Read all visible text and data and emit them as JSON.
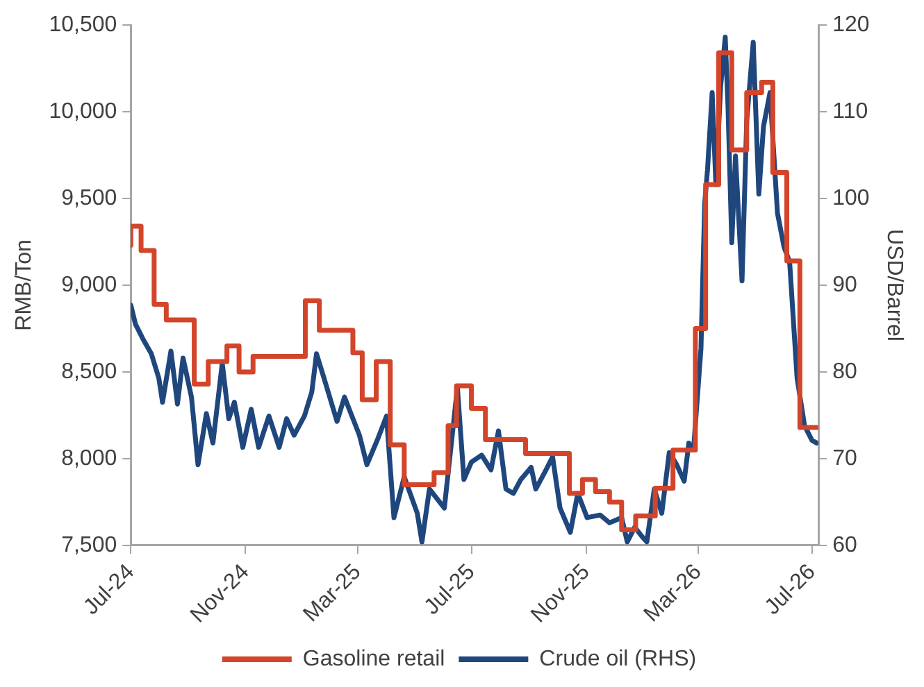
{
  "chart_data": {
    "type": "line",
    "ylabel": "RMB/Ton",
    "y2label": "USD/Barrel",
    "xlim": [
      "2024-07-01",
      "2026-07-08"
    ],
    "xticks": [
      {
        "value": "2024-07-01",
        "label": "Jul-24"
      },
      {
        "value": "2024-11-01",
        "label": "Nov-24"
      },
      {
        "value": "2025-03-01",
        "label": "Mar-25"
      },
      {
        "value": "2025-07-01",
        "label": "Jul-25"
      },
      {
        "value": "2025-11-01",
        "label": "Nov-25"
      },
      {
        "value": "2026-03-01",
        "label": "Mar-26"
      },
      {
        "value": "2026-07-01",
        "label": "Jul-26"
      }
    ],
    "ylim": [
      7500,
      10500
    ],
    "yticks": [
      {
        "value": 7500,
        "label": "7,500"
      },
      {
        "value": 8000,
        "label": "8,000"
      },
      {
        "value": 8500,
        "label": "8,500"
      },
      {
        "value": 9000,
        "label": "9,000"
      },
      {
        "value": 9500,
        "label": "9,500"
      },
      {
        "value": 10000,
        "label": "10,000"
      },
      {
        "value": 10500,
        "label": "10,500"
      }
    ],
    "y2lim": [
      60,
      120
    ],
    "y2ticks": [
      60,
      70,
      80,
      90,
      100,
      110,
      120
    ],
    "grid": false,
    "legend": "bottom",
    "marker": "none",
    "line_style": "solid",
    "series": [
      {
        "name": "Gasoline retail",
        "type": "step",
        "color": "#d2452b",
        "x": [
          "2024-07-01",
          "2024-07-12",
          "2024-07-26",
          "2024-08-08",
          "2024-09-07",
          "2024-09-22",
          "2024-10-12",
          "2024-10-25",
          "2024-11-09",
          "2025-01-04",
          "2025-01-19",
          "2025-02-24",
          "2025-03-06",
          "2025-03-21",
          "2025-04-05",
          "2025-04-20",
          "2025-05-22",
          "2025-06-06",
          "2025-06-15",
          "2025-07-01",
          "2025-07-16",
          "2025-08-28",
          "2025-10-14",
          "2025-10-28",
          "2025-11-11",
          "2025-11-26",
          "2025-12-09",
          "2025-12-24",
          "2026-01-14",
          "2026-02-02",
          "2026-02-26",
          "2026-03-09",
          "2026-03-23",
          "2026-04-06",
          "2026-04-22",
          "2026-05-08",
          "2026-05-20",
          "2026-06-04",
          "2026-06-18",
          "2026-07-04",
          "2026-07-06"
        ],
        "values": [
          9230,
          9340,
          9200,
          8890,
          8800,
          8430,
          8560,
          8650,
          8500,
          8590,
          8910,
          8740,
          8610,
          8340,
          8560,
          8080,
          7850,
          7920,
          8190,
          8420,
          8290,
          8110,
          8030,
          7800,
          7880,
          7810,
          7750,
          7590,
          7670,
          7830,
          8050,
          8750,
          9580,
          10340,
          9780,
          10110,
          10170,
          9650,
          9140,
          8180,
          8180
        ]
      },
      {
        "name": "Crude oil (RHS)",
        "type": "line",
        "axis": "y2",
        "color": "#1f477d",
        "x": [
          "2024-07-01",
          "2024-07-06",
          "2024-07-14",
          "2024-07-23",
          "2024-07-31",
          "2024-08-04",
          "2024-08-13",
          "2024-08-20",
          "2024-08-26",
          "2024-09-04",
          "2024-09-11",
          "2024-09-20",
          "2024-09-27",
          "2024-10-07",
          "2024-10-14",
          "2024-10-20",
          "2024-10-29",
          "2024-11-07",
          "2024-11-15",
          "2024-11-26",
          "2024-12-07",
          "2024-12-15",
          "2024-12-23",
          "2025-01-03",
          "2025-01-11",
          "2025-01-16",
          "2025-01-24",
          "2025-02-07",
          "2025-02-15",
          "2025-02-23",
          "2025-03-03",
          "2025-03-11",
          "2025-03-22",
          "2025-04-01",
          "2025-04-09",
          "2025-04-20",
          "2025-05-04",
          "2025-05-09",
          "2025-05-17",
          "2025-06-02",
          "2025-06-16",
          "2025-06-23",
          "2025-07-01",
          "2025-07-12",
          "2025-07-22",
          "2025-07-30",
          "2025-08-07",
          "2025-08-15",
          "2025-08-23",
          "2025-09-03",
          "2025-09-08",
          "2025-09-18",
          "2025-09-26",
          "2025-10-04",
          "2025-10-15",
          "2025-10-23",
          "2025-11-02",
          "2025-11-16",
          "2025-11-26",
          "2025-12-09",
          "2025-12-15",
          "2025-12-23",
          "2025-12-31",
          "2026-01-05",
          "2026-01-13",
          "2026-01-21",
          "2026-01-29",
          "2026-02-06",
          "2026-02-14",
          "2026-02-19",
          "2026-02-24",
          "2026-03-04",
          "2026-03-08",
          "2026-03-11",
          "2026-03-16",
          "2026-03-20",
          "2026-03-25",
          "2026-03-30",
          "2026-04-02",
          "2026-04-06",
          "2026-04-10",
          "2026-04-17",
          "2026-04-22",
          "2026-04-29",
          "2026-05-05",
          "2026-05-10",
          "2026-05-17",
          "2026-05-25",
          "2026-06-01",
          "2026-06-07",
          "2026-06-15",
          "2026-06-23",
          "2026-07-01",
          "2026-07-06"
        ],
        "values": [
          87.7,
          85.5,
          83.8,
          82.1,
          79.3,
          76.5,
          82.4,
          76.3,
          81.6,
          77.1,
          69.3,
          75.2,
          71.8,
          81.0,
          74.6,
          76.5,
          71.3,
          75.7,
          71.3,
          74.9,
          71.3,
          74.6,
          72.7,
          74.9,
          77.7,
          82.1,
          79.3,
          74.3,
          77.1,
          74.9,
          72.7,
          69.3,
          72.1,
          74.9,
          63.2,
          67.9,
          63.7,
          60.4,
          66.5,
          64.3,
          78.2,
          67.6,
          69.6,
          70.4,
          68.7,
          73.2,
          66.5,
          66.0,
          67.6,
          69.0,
          66.5,
          68.5,
          70.2,
          64.3,
          61.5,
          66.0,
          63.2,
          63.5,
          62.6,
          63.2,
          60.4,
          62.1,
          61.0,
          60.4,
          66.5,
          63.7,
          70.7,
          69.3,
          67.4,
          71.8,
          71.0,
          82.7,
          99.4,
          103.3,
          112.2,
          101.6,
          112.8,
          118.6,
          110.5,
          94.9,
          104.9,
          90.5,
          108.9,
          118.0,
          100.5,
          108.3,
          112.2,
          98.3,
          94.4,
          92.7,
          79.3,
          73.8,
          72.1,
          71.8
        ]
      }
    ]
  }
}
